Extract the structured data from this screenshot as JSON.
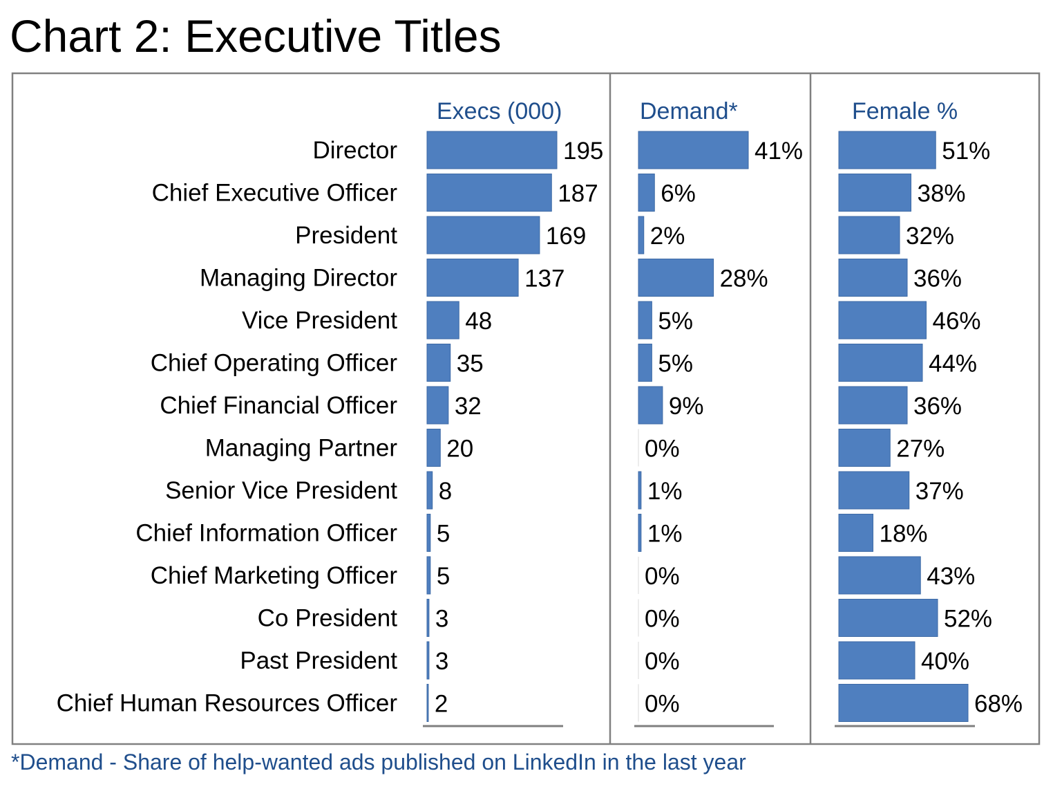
{
  "title": "Chart 2: Executive Titles",
  "footnote": "*Demand - Share of help-wanted ads published on LinkedIn in the last year",
  "colors": {
    "bar": "#4f7fbf",
    "bar_edge": "#3d6aa5",
    "header": "#1f4e8c",
    "frame": "#808080",
    "text": "#000000"
  },
  "chart_data": {
    "type": "bar",
    "orientation": "horizontal",
    "categories": [
      "Director",
      "Chief Executive Officer",
      "President",
      "Managing Director",
      "Vice President",
      "Chief Operating Officer",
      "Chief Financial Officer",
      "Managing Partner",
      "Senior Vice President",
      "Chief Information Officer",
      "Chief Marketing Officer",
      "Co President",
      "Past President",
      "Chief Human Resources Officer"
    ],
    "series": [
      {
        "name": "Execs (000)",
        "values": [
          195,
          187,
          169,
          137,
          48,
          35,
          32,
          20,
          8,
          5,
          5,
          3,
          3,
          2
        ],
        "labels": [
          "195",
          "187",
          "169",
          "137",
          "48",
          "35",
          "32",
          "20",
          "8",
          "5",
          "5",
          "3",
          "3",
          "2"
        ],
        "max": 195
      },
      {
        "name": "Demand*",
        "values": [
          41,
          6,
          2,
          28,
          5,
          5,
          9,
          0,
          1,
          1,
          0,
          0,
          0,
          0
        ],
        "labels": [
          "41%",
          "6%",
          "2%",
          "28%",
          "5%",
          "5%",
          "9%",
          "0%",
          "1%",
          "1%",
          "0%",
          "0%",
          "0%",
          "0%"
        ],
        "max": 41
      },
      {
        "name": "Female %",
        "values": [
          51,
          38,
          32,
          36,
          46,
          44,
          36,
          27,
          37,
          18,
          43,
          52,
          40,
          68
        ],
        "labels": [
          "51%",
          "38%",
          "32%",
          "36%",
          "46%",
          "44%",
          "36%",
          "27%",
          "37%",
          "18%",
          "43%",
          "52%",
          "40%",
          "68%"
        ],
        "max": 68
      }
    ],
    "grid": false,
    "legend": "none"
  }
}
